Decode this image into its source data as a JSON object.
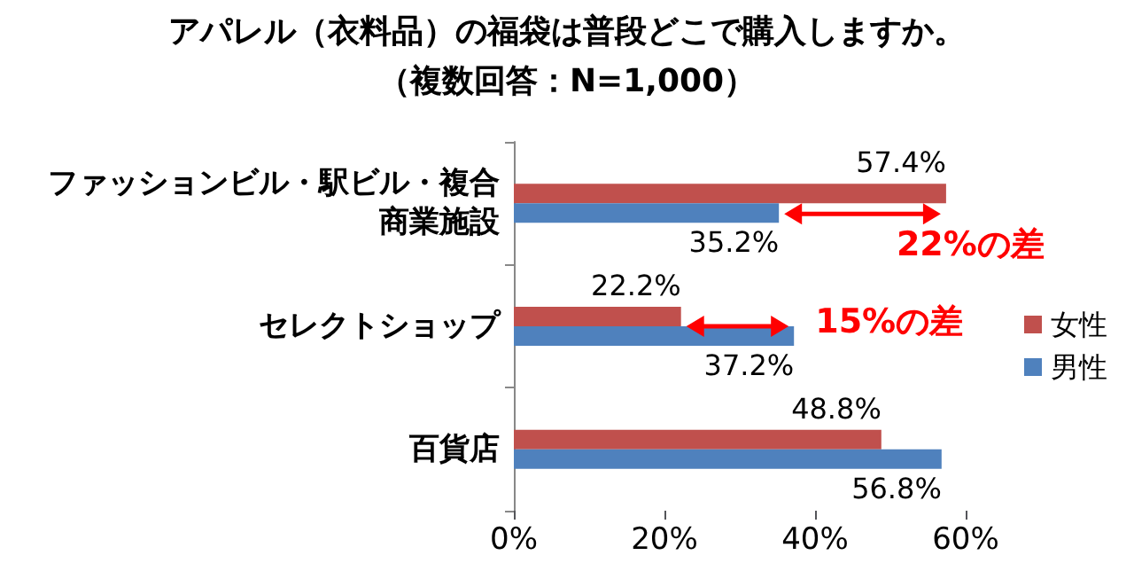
{
  "chart_data": {
    "type": "bar",
    "orientation": "horizontal",
    "title": "アパレル（衣料品）の福袋は普段どこで購入しますか。",
    "subtitle": "（複数回答：N=1,000）",
    "categories": [
      "ファッションビル・駅ビル・複合商業施設",
      "セレクトショップ",
      "百貨店"
    ],
    "series": [
      {
        "name": "女性",
        "color": "#c0504d",
        "values": [
          57.4,
          22.2,
          48.8
        ],
        "value_labels": [
          "57.4%",
          "22.2%",
          "48.8%"
        ]
      },
      {
        "name": "男性",
        "color": "#4f81bd",
        "values": [
          35.2,
          37.2,
          56.8
        ],
        "value_labels": [
          "35.2%",
          "37.2%",
          "56.8%"
        ]
      }
    ],
    "xlim": [
      0,
      60
    ],
    "xticks": [
      {
        "value": 0,
        "label": "0%"
      },
      {
        "value": 20,
        "label": "20%"
      },
      {
        "value": 40,
        "label": "40%"
      },
      {
        "value": 60,
        "label": "60%"
      }
    ],
    "annotations": [
      {
        "text": "22%の差",
        "x": 57.4,
        "y": "ファッションビル・駅ビル・複合商業施設"
      },
      {
        "text": "15%の差",
        "x": 37.2,
        "y": "セレクトショップ"
      }
    ],
    "legend": "right",
    "grid": false
  }
}
